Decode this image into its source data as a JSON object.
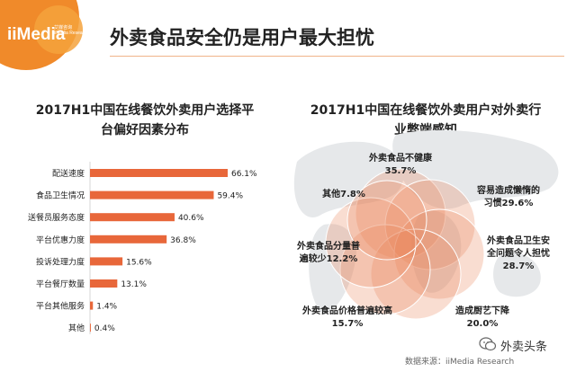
{
  "logo": {
    "text": "iiMedia",
    "sub_line1": "艾媒咨询",
    "sub_line2": "iiMedia Research"
  },
  "header": {
    "title": "外卖食品安全仍是用户最大担忧"
  },
  "colors": {
    "accent": "#e8673a",
    "venn": "#e9845a",
    "map": "#e6e8ea"
  },
  "chart_data": [
    {
      "type": "bar",
      "title_line1": "2017H1中国在线餐饮外卖用户选择平",
      "title_line2": "台偏好因素分布",
      "categories": [
        "配送速度",
        "食品卫生情况",
        "送餐员服务态度",
        "平台优惠力度",
        "投诉处理力度",
        "平台餐厅数量",
        "平台其他服务",
        "其他"
      ],
      "values": [
        66.1,
        59.4,
        40.6,
        36.8,
        15.6,
        13.1,
        1.4,
        0.4
      ],
      "value_labels": [
        "66.1%",
        "59.4%",
        "40.6%",
        "36.8%",
        "15.6%",
        "13.1%",
        "1.4%",
        "0.4%"
      ],
      "orientation": "horizontal",
      "xlim": [
        0,
        70
      ]
    },
    {
      "type": "venn",
      "title_line1": "2017H1中国在线餐饮外卖用户对外卖行",
      "title_line2": "业弊端感知",
      "items": [
        {
          "label": "外卖食品不健康",
          "value": "35.7%"
        },
        {
          "label": "容易造成懒惰的",
          "label2": "习惯",
          "value": "29.6%"
        },
        {
          "label": "外卖食品卫生安",
          "label2": "全问题令人担忧",
          "value": "28.7%"
        },
        {
          "label": "造成厨艺下降",
          "value": "20.0%"
        },
        {
          "label": "外卖食品价格普遍较高",
          "value": "15.7%"
        },
        {
          "label": "外卖食品分量普",
          "label2": "遍较少",
          "value": "12.2%"
        },
        {
          "label": "其他",
          "value": "7.8%"
        }
      ]
    }
  ],
  "footer": {
    "source": "数据来源：iiMedia Research",
    "brand": "外卖头条"
  }
}
